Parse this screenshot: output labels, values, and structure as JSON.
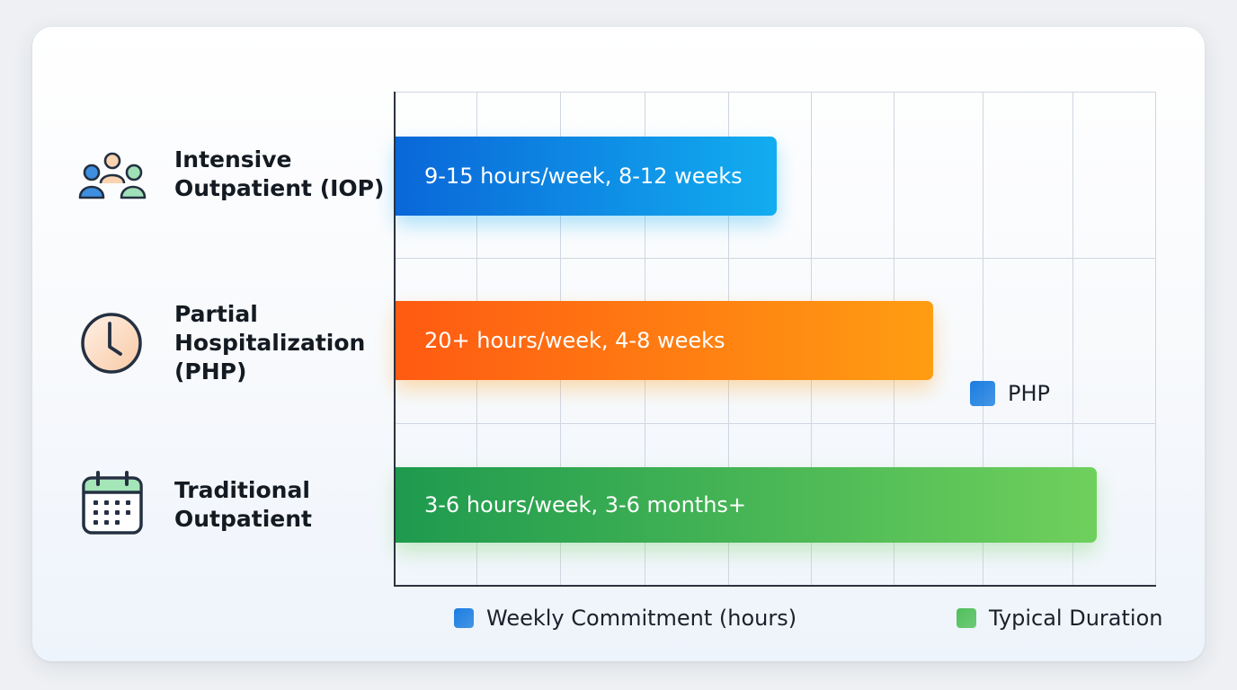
{
  "chart_data": {
    "type": "bar",
    "orientation": "horizontal",
    "categories": [
      "Intensive\nOutpatient (IOP)",
      "Partial\nHospitalization\n(PHP)",
      "Traditional\nOutpatient"
    ],
    "icons": [
      "people-group-icon",
      "clock-icon",
      "calendar-icon"
    ],
    "bar_labels": [
      "9-15 hours/week, 8-12 weeks",
      "20+ hours/week, 4-8 weeks",
      "3-6 hours/week, 3-6 months+"
    ],
    "values": [
      0.5,
      0.705,
      0.92
    ],
    "value_scale": "relative length as fraction of plot width (no axis ticks printed)",
    "bar_colors": [
      [
        "#0a67d8",
        "#12adf0"
      ],
      [
        "#ff5a12",
        "#ff9d12"
      ],
      [
        "#1e9a4e",
        "#6fd05c"
      ]
    ],
    "legend": [
      {
        "label": "Weekly Commitment (hours)",
        "color": "#1a7de0"
      },
      {
        "label": "Typical Duration",
        "color": "#4fbf5a"
      }
    ],
    "annotation": {
      "label": "PHP",
      "color": "#1a7de0"
    },
    "grid": true,
    "legend_position": "bottom"
  }
}
